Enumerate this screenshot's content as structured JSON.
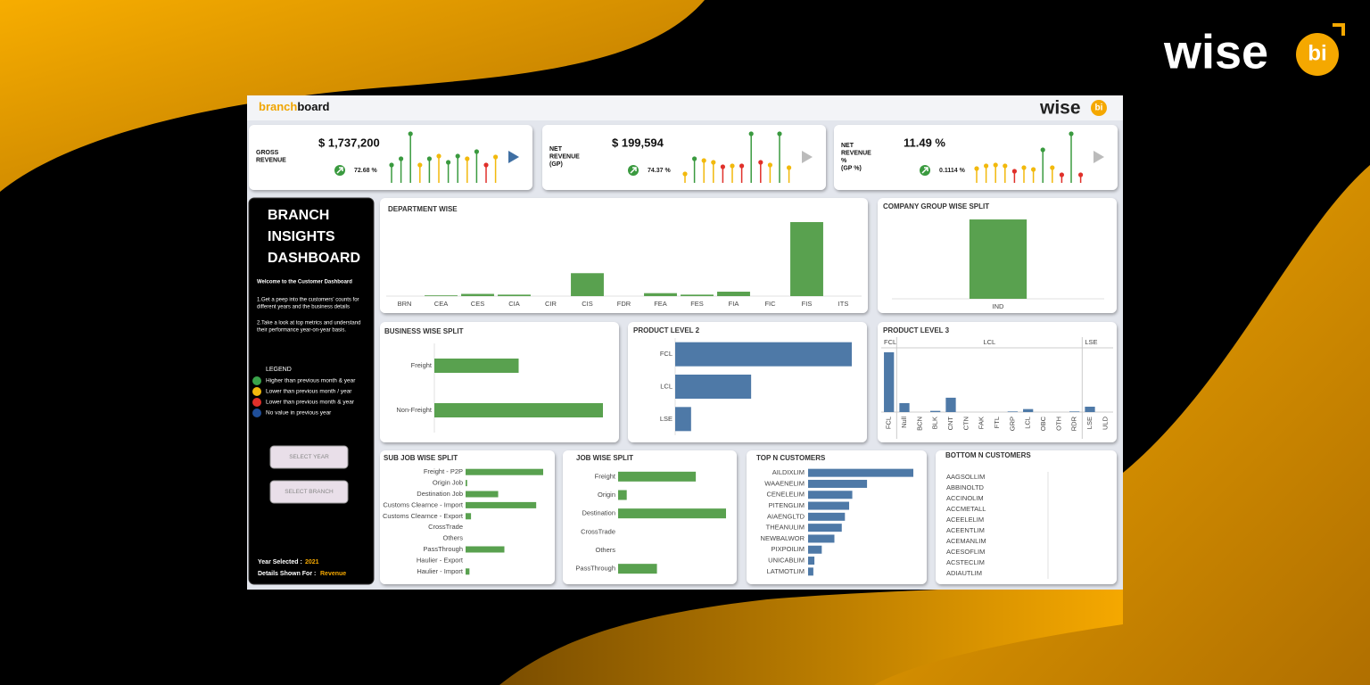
{
  "header": {
    "brand_prefix": "branch",
    "brand_suffix": "board",
    "logo": "wise",
    "logo_badge": "bi"
  },
  "corner_logo": {
    "text": "wise",
    "badge": "bi"
  },
  "kpis": [
    {
      "label_lines": [
        "GROSS",
        "REVENUE"
      ],
      "value": "$ 1,737,200",
      "change": "72.68 %",
      "play_color": "#3f6fa3",
      "ylim": [
        0,
        60
      ],
      "values": [
        20,
        27,
        55,
        20,
        27,
        30,
        23,
        30,
        27,
        35,
        20,
        29
      ],
      "colors": [
        "#3a9a3f",
        "#3a9a3f",
        "#3a9a3f",
        "#f2b90c",
        "#3a9a3f",
        "#f2b90c",
        "#3a9a3f",
        "#3a9a3f",
        "#f2b90c",
        "#3a9a3f",
        "#e0302a",
        "#f2b90c"
      ]
    },
    {
      "label_lines": [
        "NET",
        "REVENUE",
        "(GP)"
      ],
      "value": "$ 199,594",
      "change": "74.37 %",
      "play_color": "#bbbbbb",
      "ylim": [
        0,
        60
      ],
      "values": [
        10,
        27,
        25,
        23,
        18,
        19,
        19,
        55,
        23,
        20,
        55,
        17
      ],
      "colors": [
        "#f2b90c",
        "#3a9a3f",
        "#f2b90c",
        "#f2b90c",
        "#e0302a",
        "#f2b90c",
        "#e0302a",
        "#3a9a3f",
        "#e0302a",
        "#f2b90c",
        "#3a9a3f",
        "#f2b90c"
      ]
    },
    {
      "label_lines": [
        "NET",
        "REVENUE",
        "%",
        "(GP %)"
      ],
      "value": "11.49 %",
      "change": "0.1114 %",
      "play_color": "#bbbbbb",
      "ylim": [
        0,
        60
      ],
      "values": [
        16,
        19,
        20,
        19,
        13,
        17,
        15,
        37,
        17,
        9,
        55,
        9
      ],
      "colors": [
        "#f2b90c",
        "#f2b90c",
        "#f2b90c",
        "#f2b90c",
        "#e0302a",
        "#f2b90c",
        "#f2b90c",
        "#3a9a3f",
        "#f2b90c",
        "#e0302a",
        "#3a9a3f",
        "#e0302a"
      ]
    }
  ],
  "sidebar": {
    "title_lines": [
      "BRANCH",
      "INSIGHTS",
      "DASHBOARD"
    ],
    "welcome": "Welcome to the Customer Dashboard",
    "points": [
      [
        "1.Get a peep into the customers' counts for",
        "different years and the business details"
      ],
      [
        "2.Take a look at top metrics and understand",
        "their performance year-on-year basis."
      ]
    ],
    "legend_title": "LEGEND",
    "legend": [
      {
        "label": "Higher than previous month & year",
        "color": "#3aa34a"
      },
      {
        "label": "Lower than previous month / year",
        "color": "#f2b90c"
      },
      {
        "label": "Lower than previous month & year",
        "color": "#e0302a"
      },
      {
        "label": "No value in previous year",
        "color": "#1f4e99"
      }
    ],
    "buttons": [
      "SELECT YEAR",
      "SELECT BRANCH"
    ],
    "year_label": "Year Selected :",
    "year": "2021",
    "details_label": "Details Shown For :",
    "details": "Revenue"
  },
  "chart_data": [
    {
      "type": "bar",
      "title": "DEPARTMENT WISE",
      "categories": [
        "BRN",
        "CEA",
        "CES",
        "CIA",
        "CIR",
        "CIS",
        "FDR",
        "FEA",
        "FES",
        "FIA",
        "FIC",
        "FIS",
        "ITS"
      ],
      "values": [
        0,
        1,
        3,
        2,
        0,
        31,
        0,
        4,
        2,
        6,
        0,
        100,
        0
      ],
      "color": "#59a14f",
      "ylim": [
        0,
        110
      ]
    },
    {
      "type": "bar",
      "title": "COMPANY GROUP WISE SPLIT",
      "categories": [
        "IND"
      ],
      "values": [
        100
      ],
      "color": "#59a14f",
      "ylim": [
        0,
        105
      ]
    },
    {
      "type": "hbar",
      "title": "BUSINESS WISE SPLIT",
      "categories": [
        "Freight",
        "Non-Freight"
      ],
      "values": [
        50,
        100
      ],
      "color": "#59a14f",
      "xlim": [
        0,
        100
      ]
    },
    {
      "type": "hbar",
      "title": "PRODUCT LEVEL 2",
      "categories": [
        "FCL",
        "LCL",
        "LSE"
      ],
      "values": [
        100,
        43,
        9
      ],
      "color": "#4e79a7",
      "xlim": [
        0,
        100
      ]
    },
    {
      "type": "panel-bar",
      "title": "PRODUCT LEVEL 3",
      "color": "#4e79a7",
      "ylim": [
        0,
        105
      ],
      "panels": [
        {
          "name": "FCL",
          "categories": [
            "FCL"
          ],
          "values": [
            100
          ]
        },
        {
          "name": "LCL",
          "categories": [
            "Null",
            "BCN",
            "BLK",
            "CNT",
            "CTN",
            "FAK",
            "FTL",
            "GRP",
            "LCL",
            "OBC",
            "OTH",
            "RDR"
          ],
          "values": [
            15,
            0,
            2,
            24,
            0,
            0,
            0,
            1,
            5,
            0,
            0,
            1
          ]
        },
        {
          "name": "LSE",
          "categories": [
            "LSE",
            "ULD"
          ],
          "values": [
            9,
            0
          ]
        }
      ]
    },
    {
      "type": "hbar",
      "title": "SUB JOB WISE SPLIT",
      "categories": [
        "Freight - P2P",
        "Origin Job",
        "Destination Job",
        "Customs Clearnce - Import",
        "Customs Clearnce - Export",
        "CrossTrade",
        "Others",
        "PassThrough",
        "Haulier - Export",
        "Haulier - Import"
      ],
      "values": [
        100,
        2,
        42,
        91,
        7,
        0,
        0,
        50,
        0,
        5
      ],
      "color": "#59a14f",
      "xlim": [
        0,
        100
      ]
    },
    {
      "type": "hbar",
      "title": "JOB WISE SPLIT",
      "categories": [
        "Freight",
        "Origin",
        "Destination",
        "CrossTrade",
        "Others",
        "PassThrough"
      ],
      "values": [
        72,
        8,
        100,
        0,
        0,
        36
      ],
      "color": "#59a14f",
      "xlim": [
        0,
        100
      ]
    },
    {
      "type": "hbar",
      "title": "TOP N CUSTOMERS",
      "categories": [
        "AILDIXLIM",
        "WAAENELIM",
        "CENELELIM",
        "PITENGLIM",
        "AIAENGLTD",
        "THEANULIM",
        "NEWBALWOR",
        "PIXPOILIM",
        "UNICABLIM",
        "LATMOTLIM"
      ],
      "values": [
        100,
        56,
        42,
        39,
        35,
        32,
        25,
        13,
        6,
        5
      ],
      "color": "#4e79a7",
      "xlim": [
        0,
        100
      ]
    },
    {
      "type": "hbar",
      "title": "BOTTOM N CUSTOMERS",
      "categories": [
        "AAGSOLLIM",
        "ABBINOLTD",
        "ACCINOLIM",
        "ACCMETALL",
        "ACEELELIM",
        "ACEENTLIM",
        "ACEMANLIM",
        "ACESOFLIM",
        "ACSTECLIM",
        "ADIAUTLIM"
      ],
      "values": [
        0,
        0,
        0,
        0,
        0,
        0,
        0,
        0,
        0,
        0
      ],
      "color": "#4e79a7",
      "xlim": [
        0,
        100
      ]
    }
  ]
}
